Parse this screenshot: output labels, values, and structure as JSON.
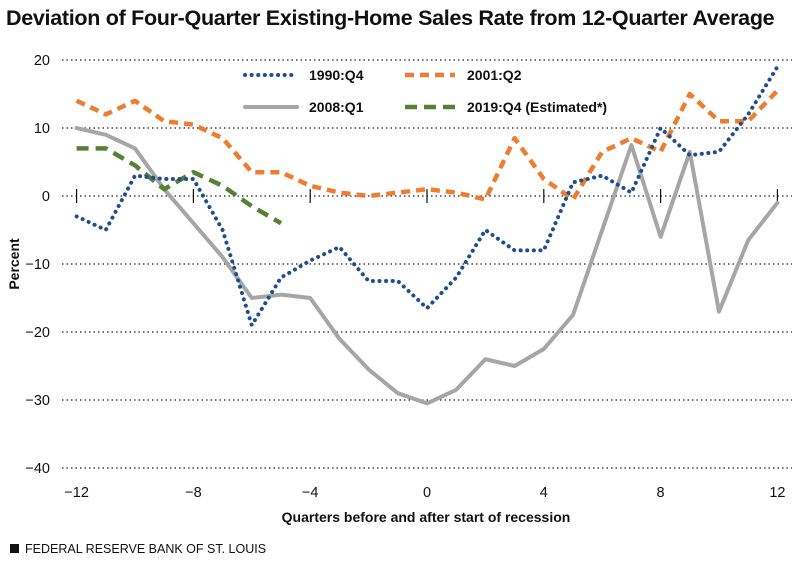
{
  "chart_data": {
    "type": "line",
    "title": "Deviation of Four-Quarter Existing-Home Sales Rate from 12-Quarter Average",
    "xlabel": "Quarters before and after start of recession",
    "ylabel": "Percent",
    "xlim": [
      -12.5,
      12.5
    ],
    "ylim": [
      -40,
      20
    ],
    "xticks": [
      -12,
      -8,
      -4,
      0,
      4,
      8,
      12
    ],
    "yticks": [
      20,
      10,
      0,
      -10,
      -20,
      -30,
      -40
    ],
    "grid": "horizontal dotted",
    "legend_position": "top-center",
    "series": [
      {
        "name": "1990:Q4",
        "color": "#1f4e8c",
        "style": "dotted",
        "x": [
          -12,
          -11,
          -10,
          -9,
          -8,
          -7,
          -6,
          -5,
          -4,
          -3,
          -2,
          -1,
          0,
          1,
          2,
          3,
          4,
          5,
          6,
          7,
          8,
          9,
          10,
          11,
          12
        ],
        "y": [
          -3,
          -5,
          3,
          2.5,
          2.5,
          -5,
          -19,
          -12,
          -9.5,
          -7.5,
          -12.5,
          -12.5,
          -16.5,
          -12,
          -5,
          -8,
          -8,
          2,
          3,
          0.5,
          10,
          6,
          6.5,
          12,
          19
        ]
      },
      {
        "name": "2001:Q2",
        "color": "#ed7d31",
        "style": "dashed",
        "x": [
          -12,
          -11,
          -10,
          -9,
          -8,
          -7,
          -6,
          -5,
          -4,
          -3,
          -2,
          -1,
          0,
          1,
          2,
          3,
          4,
          5,
          6,
          7,
          8,
          9,
          10,
          11,
          12
        ],
        "y": [
          14,
          12,
          14,
          11,
          10.5,
          8.5,
          3.5,
          3.5,
          1.5,
          0.5,
          0,
          0.5,
          1,
          0.5,
          -0.5,
          8.5,
          2.5,
          -0.5,
          6.5,
          8.5,
          6.5,
          15,
          11,
          11,
          15.5
        ]
      },
      {
        "name": "2008:Q1",
        "color": "#a6a6a6",
        "style": "solid",
        "x": [
          -12,
          -11,
          -10,
          -9,
          -8,
          -7,
          -6,
          -5,
          -4,
          -3,
          -2,
          -1,
          0,
          1,
          2,
          3,
          4,
          5,
          6,
          7,
          8,
          9,
          10,
          11,
          12
        ],
        "y": [
          10,
          9,
          7,
          1,
          -4,
          -9,
          -15,
          -14.5,
          -15,
          -21,
          -25.5,
          -29,
          -30.5,
          -28.5,
          -24,
          -25,
          -22.5,
          -17.5,
          -5,
          7.5,
          -6,
          6.5,
          -17,
          -6.5,
          -1
        ]
      },
      {
        "name": "2019:Q4 (Estimated*)",
        "color": "#548235",
        "style": "dashed-long",
        "x": [
          -12,
          -11,
          -10,
          -9,
          -8,
          -7,
          -6,
          -5
        ],
        "y": [
          7,
          7,
          4.5,
          1,
          3.5,
          1.5,
          -1.5,
          -4
        ]
      }
    ]
  },
  "footer": {
    "source": "FEDERAL RESERVE BANK OF ST. LOUIS"
  }
}
